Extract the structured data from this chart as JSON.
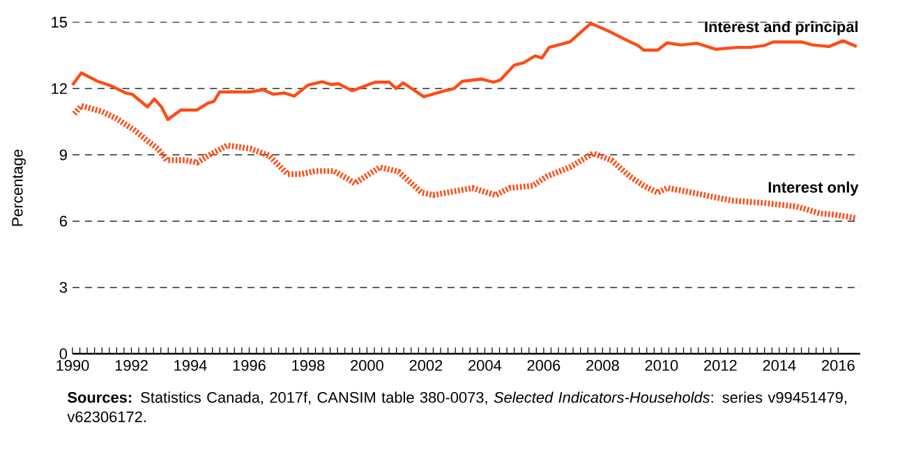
{
  "chart_data": {
    "type": "line",
    "ylabel": "Percentage",
    "xlim": [
      1990,
      2016.75
    ],
    "ylim": [
      0,
      15
    ],
    "xticks": [
      1990,
      1992,
      1994,
      1996,
      1998,
      2000,
      2002,
      2004,
      2006,
      2008,
      2010,
      2012,
      2014,
      2016
    ],
    "yticks": [
      0,
      3,
      6,
      9,
      12,
      15
    ],
    "grid": "y",
    "legend": false,
    "marker": "none",
    "series": [
      {
        "name": "Interest and principal",
        "color": "#ff4b14",
        "line_style": "solid",
        "x": [
          1990.0,
          1990.3,
          1990.85,
          1991.32,
          1991.8,
          1992.03,
          1992.55,
          1992.78,
          1993.02,
          1993.24,
          1993.68,
          1994.23,
          1994.6,
          1994.8,
          1995.0,
          1996.04,
          1996.47,
          1996.82,
          1997.2,
          1997.53,
          1998.0,
          1998.48,
          1998.79,
          1999.03,
          1999.5,
          2000.27,
          2000.75,
          2000.99,
          2001.23,
          2001.93,
          2002.64,
          2002.96,
          2003.24,
          2003.9,
          2004.29,
          2004.53,
          2005.0,
          2005.32,
          2005.71,
          2005.94,
          2006.18,
          2006.89,
          2007.6,
          2008.3,
          2008.77,
          2009.2,
          2009.4,
          2009.87,
          2010.19,
          2010.66,
          2011.2,
          2011.84,
          2012.55,
          2013.0,
          2013.5,
          2013.8,
          2014.75,
          2015.14,
          2015.69,
          2016.16,
          2016.63
        ],
        "values": [
          12.16,
          12.71,
          12.33,
          12.12,
          11.8,
          11.74,
          11.17,
          11.53,
          11.17,
          10.6,
          11.03,
          11.03,
          11.34,
          11.42,
          11.85,
          11.85,
          11.95,
          11.74,
          11.8,
          11.66,
          12.16,
          12.31,
          12.18,
          12.22,
          11.9,
          12.29,
          12.29,
          12.0,
          12.26,
          11.63,
          11.9,
          12.0,
          12.33,
          12.43,
          12.29,
          12.39,
          13.06,
          13.17,
          13.48,
          13.38,
          13.86,
          14.11,
          14.95,
          14.54,
          14.22,
          13.95,
          13.74,
          13.74,
          14.07,
          13.97,
          14.05,
          13.78,
          13.86,
          13.86,
          13.95,
          14.11,
          14.11,
          13.97,
          13.9,
          14.16,
          13.9
        ]
      },
      {
        "name": "Interest only",
        "color": "#ff4b14",
        "line_style": "dashed",
        "x": [
          1990.06,
          1990.3,
          1991.0,
          1991.48,
          1992.1,
          1992.58,
          1992.9,
          1993.2,
          1993.83,
          1994.23,
          1994.62,
          1995.25,
          1996.04,
          1996.67,
          1997.3,
          1997.77,
          1998.24,
          1998.87,
          1999.34,
          1999.58,
          2000.44,
          2001.07,
          2001.86,
          2002.25,
          2003.58,
          2004.37,
          2004.84,
          2005.63,
          2006.1,
          2006.89,
          2007.68,
          2008.3,
          2008.93,
          2009.4,
          2009.87,
          2010.19,
          2010.66,
          2011.45,
          2012.39,
          2013.49,
          2014.59,
          2015.38,
          2015.85,
          2016.63
        ],
        "values": [
          10.86,
          11.22,
          10.96,
          10.65,
          10.12,
          9.6,
          9.28,
          8.76,
          8.76,
          8.65,
          8.97,
          9.43,
          9.28,
          8.97,
          8.13,
          8.13,
          8.27,
          8.27,
          7.92,
          7.71,
          8.44,
          8.24,
          7.29,
          7.18,
          7.5,
          7.18,
          7.5,
          7.6,
          8.02,
          8.44,
          9.07,
          8.76,
          8.02,
          7.6,
          7.29,
          7.5,
          7.39,
          7.18,
          6.93,
          6.82,
          6.66,
          6.35,
          6.3,
          6.13
        ]
      }
    ],
    "annotations": [
      "**Sources:** Statistics Canada, 2017f, CANSIM table 380-0073, *Selected Indicators-Households*: series v99451479, v62306172."
    ]
  }
}
